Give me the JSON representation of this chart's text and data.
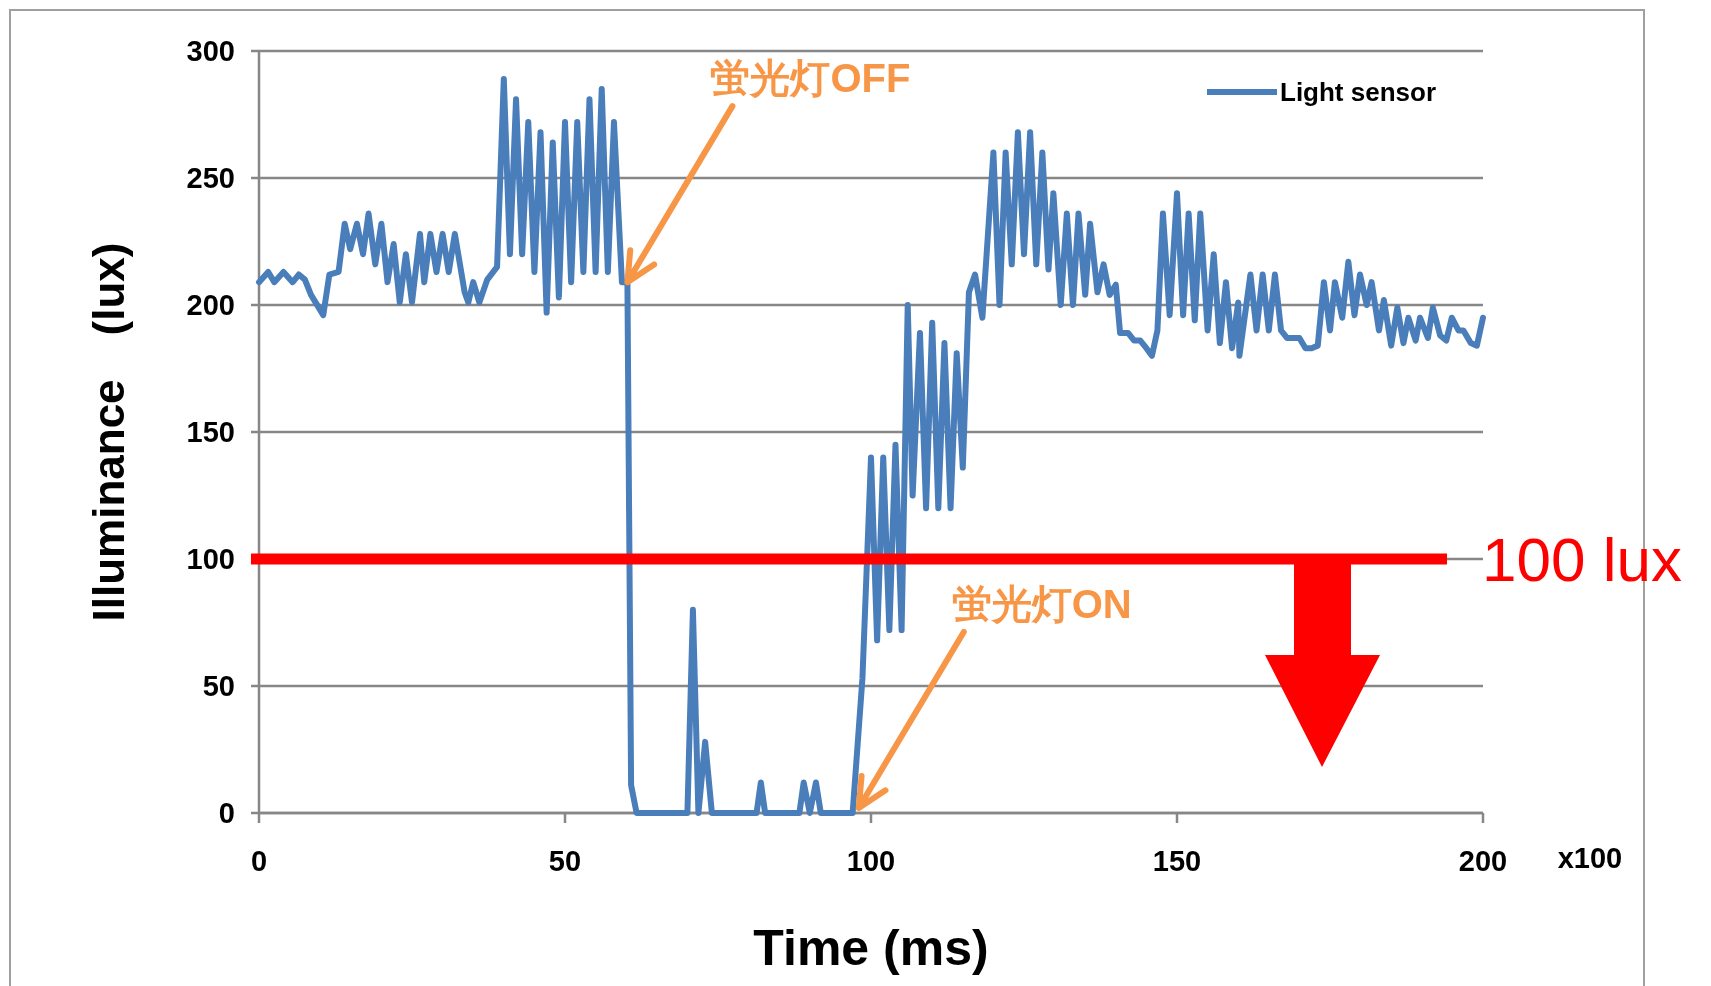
{
  "chart_data": {
    "type": "line",
    "xlabel": "Time (ms)",
    "ylabel": "Illuminance　(lux)",
    "x": [
      0,
      1.5,
      2.5,
      4,
      5.5,
      6.5,
      7.5,
      8.5,
      10.5,
      11.5,
      13,
      14,
      14.9,
      16,
      17,
      17.9,
      19,
      20,
      21,
      22,
      23,
      24,
      25,
      26.3,
      27,
      28,
      29,
      30,
      31,
      32,
      33.6,
      34.2,
      35,
      36,
      37.3,
      38.9,
      40,
      41,
      42,
      43,
      44,
      45,
      46,
      47,
      48,
      49,
      50,
      51,
      52,
      53,
      54,
      55,
      56,
      57,
      58,
      59.3,
      60.2,
      60.8,
      61.7,
      70,
      70.9,
      71.8,
      72.9,
      74,
      81.3,
      82,
      82.7,
      88.3,
      89,
      90,
      91,
      91.8,
      97,
      98.6,
      100,
      101,
      102,
      103,
      104,
      105,
      106,
      106.8,
      108,
      109,
      110,
      111,
      112,
      113,
      114,
      115,
      116,
      117,
      118.2,
      120,
      121,
      122,
      123,
      124,
      125,
      126,
      127,
      128,
      129,
      129.8,
      131,
      132,
      133,
      133.9,
      135,
      135.8,
      137,
      138,
      139,
      140,
      140.7,
      142,
      143,
      144,
      145,
      145.9,
      146.8,
      147.7,
      148.8,
      150,
      151,
      151.9,
      152.9,
      153.8,
      155,
      156,
      157,
      158,
      159,
      160,
      160.2,
      162,
      163,
      164,
      165,
      166,
      167,
      168,
      170,
      171,
      172,
      173,
      174,
      175,
      175.8,
      177,
      178,
      179,
      179.9,
      181,
      181.8,
      183,
      183.8,
      185,
      186,
      187,
      187.8,
      189,
      189.7,
      191,
      191.8,
      193,
      194,
      194.9,
      196,
      196.8,
      198,
      199,
      200
    ],
    "series": [
      {
        "name": "Light sensor",
        "color": "#4a7ebb",
        "values": [
          209,
          213,
          209,
          213,
          209,
          212,
          210,
          204,
          196,
          212,
          213,
          232,
          222,
          232,
          220,
          236,
          216,
          232,
          209,
          224,
          201,
          220,
          201,
          228,
          209,
          228,
          213,
          228,
          213,
          228,
          205,
          201,
          209,
          201,
          210,
          215,
          289,
          220,
          281,
          220,
          272,
          213,
          268,
          197,
          264,
          203,
          272,
          209,
          272,
          213,
          281,
          213,
          285,
          213,
          272,
          209,
          209,
          11,
          0,
          0,
          80,
          0,
          28,
          0,
          0,
          12,
          0,
          0,
          12,
          0,
          12,
          0,
          0,
          53,
          140,
          68,
          140,
          72,
          145,
          72,
          200,
          125,
          189,
          120,
          193,
          120,
          185,
          120,
          181,
          136,
          205,
          212,
          195,
          260,
          200,
          260,
          216,
          268,
          220,
          268,
          216,
          260,
          214,
          244,
          200,
          236,
          200,
          236,
          204,
          232,
          205,
          216,
          204,
          208,
          189,
          189,
          186,
          186,
          183,
          180,
          190,
          236,
          196,
          244,
          196,
          236,
          194,
          236,
          190,
          220,
          185,
          209,
          183,
          201,
          180,
          212,
          190,
          212,
          190,
          212,
          190,
          187,
          187,
          183,
          183,
          184,
          209,
          190,
          209,
          195,
          217,
          196,
          212,
          200,
          209,
          190,
          202,
          184,
          199,
          185,
          195,
          186,
          195,
          187,
          199,
          188,
          186,
          195,
          190,
          190,
          185,
          184,
          195
        ]
      }
    ],
    "xlim": [
      0,
      200
    ],
    "xticks": [
      0,
      50,
      100,
      150,
      200
    ],
    "ylim": [
      0,
      300
    ],
    "yticks": [
      0,
      50,
      100,
      150,
      200,
      250,
      300
    ],
    "grid": "y",
    "legend": "top right",
    "marker": "none",
    "line_style": "solid",
    "ref_lines": [
      {
        "axis": "y",
        "value": 100,
        "label": "100 lux",
        "color": "#ff0000"
      }
    ],
    "annotations": [
      {
        "text": "蛍光灯OFF",
        "x": 60.2,
        "y": 209
      },
      {
        "text": "蛍光灯ON",
        "x": 98,
        "y": 2
      },
      "x100"
    ]
  }
}
